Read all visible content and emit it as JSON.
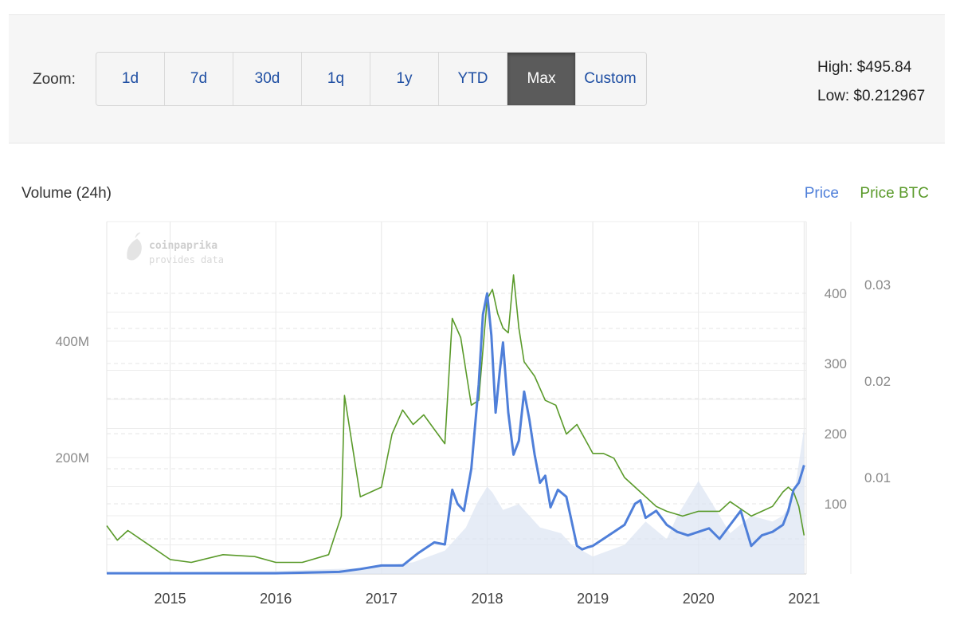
{
  "zoom": {
    "label": "Zoom:",
    "buttons": [
      "1d",
      "7d",
      "30d",
      "1q",
      "1y",
      "YTD",
      "Max",
      "Custom"
    ],
    "active": "Max"
  },
  "stats": {
    "high": "High: $495.84",
    "low": "Low: $0.212967"
  },
  "watermark": {
    "line1": "coinpaprika",
    "line2": "provides data"
  },
  "colors": {
    "price": "#4f7fd9",
    "price_btc": "#5a9a2a",
    "volume": "#dde5f3",
    "grid": "#e6e6e6",
    "active_button": "#5b5b5b"
  },
  "chart_data": {
    "type": "line",
    "title": "",
    "volume_label": "Volume (24h)",
    "legend": [
      "Price",
      "Price BTC"
    ],
    "legend_position": "top-right",
    "x_ticks": [
      "2015",
      "2016",
      "2017",
      "2018",
      "2019",
      "2020",
      "2021"
    ],
    "x_range": [
      2014.4,
      2021.02
    ],
    "volume_axis": {
      "ticks": [
        "200M",
        "400M"
      ],
      "range": [
        0,
        400000000
      ]
    },
    "price_axis": {
      "ticks": [
        "100",
        "200",
        "300",
        "400"
      ],
      "range": [
        0,
        400
      ]
    },
    "btc_axis": {
      "ticks": [
        "0.01",
        "0.02",
        "0.03"
      ],
      "range": [
        0,
        0.03
      ]
    },
    "series": [
      {
        "name": "Price",
        "x": [
          2014.4,
          2015.0,
          2016.0,
          2016.6,
          2016.8,
          2017.0,
          2017.2,
          2017.35,
          2017.5,
          2017.6,
          2017.67,
          2017.72,
          2017.78,
          2017.85,
          2017.92,
          2017.96,
          2018.0,
          2018.04,
          2018.08,
          2018.12,
          2018.15,
          2018.2,
          2018.25,
          2018.3,
          2018.35,
          2018.4,
          2018.45,
          2018.5,
          2018.55,
          2018.6,
          2018.67,
          2018.75,
          2018.85,
          2018.9,
          2018.95,
          2019.0,
          2019.1,
          2019.2,
          2019.3,
          2019.4,
          2019.45,
          2019.5,
          2019.6,
          2019.7,
          2019.8,
          2019.9,
          2020.0,
          2020.1,
          2020.2,
          2020.3,
          2020.4,
          2020.5,
          2020.6,
          2020.7,
          2020.8,
          2020.85,
          2020.9,
          2020.95,
          2021.0
        ],
        "values": [
          1,
          1,
          1,
          3,
          7,
          12,
          12,
          30,
          45,
          42,
          120,
          100,
          90,
          150,
          270,
          370,
          400,
          340,
          230,
          290,
          330,
          230,
          170,
          190,
          260,
          220,
          170,
          130,
          140,
          95,
          120,
          110,
          40,
          35,
          38,
          40,
          50,
          60,
          70,
          100,
          105,
          80,
          90,
          70,
          60,
          55,
          60,
          65,
          50,
          70,
          90,
          40,
          55,
          60,
          70,
          90,
          120,
          130,
          155
        ]
      },
      {
        "name": "Price BTC",
        "x": [
          2014.4,
          2014.5,
          2014.6,
          2014.8,
          2015.0,
          2015.2,
          2015.5,
          2015.8,
          2016.0,
          2016.25,
          2016.5,
          2016.62,
          2016.65,
          2016.8,
          2016.9,
          2017.0,
          2017.1,
          2017.2,
          2017.3,
          2017.4,
          2017.5,
          2017.6,
          2017.67,
          2017.75,
          2017.85,
          2017.92,
          2018.0,
          2018.05,
          2018.1,
          2018.15,
          2018.2,
          2018.25,
          2018.3,
          2018.35,
          2018.45,
          2018.55,
          2018.65,
          2018.75,
          2018.85,
          2018.95,
          2019.0,
          2019.1,
          2019.2,
          2019.3,
          2019.45,
          2019.6,
          2019.7,
          2019.85,
          2020.0,
          2020.2,
          2020.3,
          2020.5,
          2020.6,
          2020.7,
          2020.8,
          2020.85,
          2020.9,
          2020.95,
          2021.0
        ],
        "values": [
          0.005,
          0.0035,
          0.0045,
          0.003,
          0.0015,
          0.0012,
          0.002,
          0.0018,
          0.0012,
          0.0012,
          0.002,
          0.006,
          0.0185,
          0.008,
          0.0085,
          0.009,
          0.0145,
          0.017,
          0.0155,
          0.0165,
          0.015,
          0.0135,
          0.0265,
          0.0245,
          0.0175,
          0.018,
          0.0285,
          0.0295,
          0.027,
          0.0255,
          0.025,
          0.031,
          0.0255,
          0.022,
          0.0205,
          0.018,
          0.0175,
          0.0145,
          0.0155,
          0.0135,
          0.0125,
          0.0125,
          0.012,
          0.01,
          0.0085,
          0.007,
          0.0065,
          0.006,
          0.0065,
          0.0065,
          0.0075,
          0.006,
          0.0065,
          0.007,
          0.0085,
          0.009,
          0.0085,
          0.007,
          0.004
        ]
      },
      {
        "name": "Volume (24h)",
        "x": [
          2014.4,
          2016.0,
          2016.8,
          2017.3,
          2017.6,
          2017.8,
          2017.9,
          2018.0,
          2018.05,
          2018.15,
          2018.3,
          2018.5,
          2018.7,
          2018.8,
          2019.0,
          2019.3,
          2019.5,
          2019.7,
          2019.8,
          2019.9,
          2020.0,
          2020.3,
          2020.5,
          2020.7,
          2020.8,
          2020.9,
          2021.0
        ],
        "values": [
          2000000,
          5000000,
          10000000,
          20000000,
          40000000,
          80000000,
          120000000,
          150000000,
          140000000,
          110000000,
          120000000,
          80000000,
          70000000,
          50000000,
          30000000,
          50000000,
          90000000,
          60000000,
          100000000,
          130000000,
          160000000,
          70000000,
          100000000,
          90000000,
          100000000,
          130000000,
          250000000
        ]
      }
    ]
  }
}
